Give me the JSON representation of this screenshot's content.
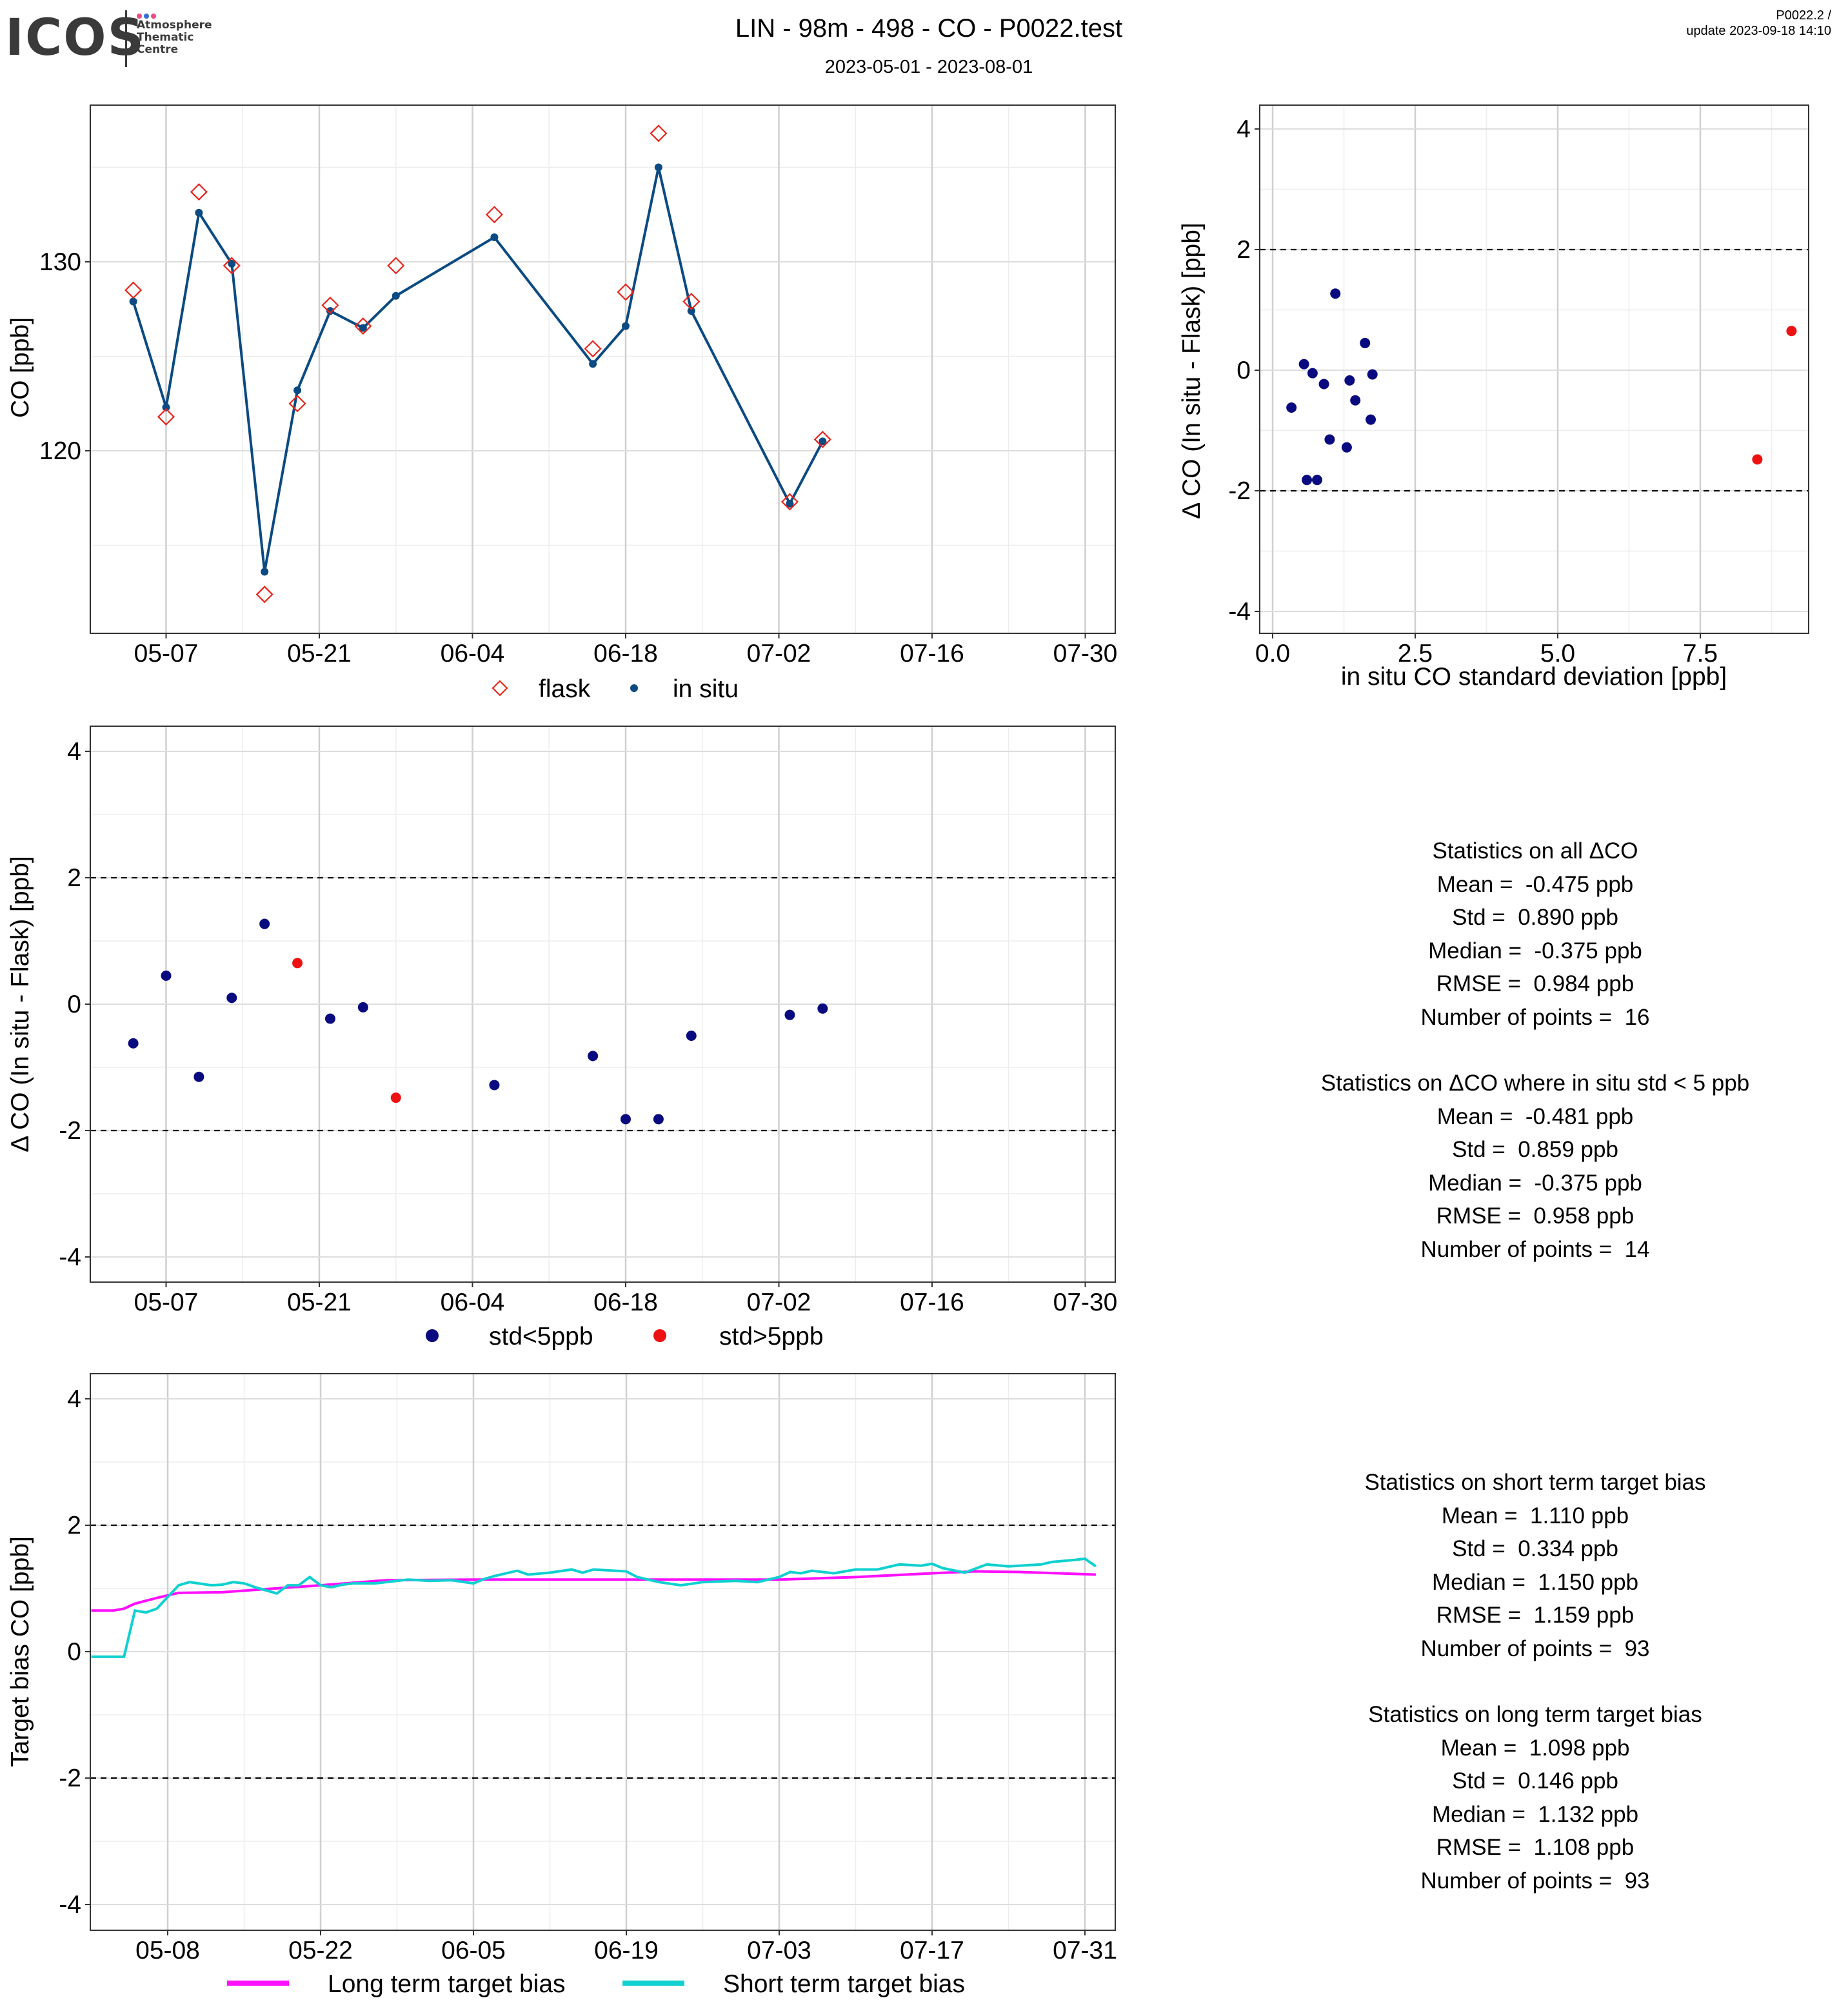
{
  "header": {
    "logo_text": "ICOS",
    "logo_subtitle": [
      "Atmosphere",
      "Thematic",
      "Centre"
    ],
    "title": "LIN - 98m - 498 - CO - P0022.test",
    "date_range": "2023-05-01 - 2023-08-01",
    "version": "P0022.2 /",
    "update": "update  2023-09-18 14:10"
  },
  "colors": {
    "flask": "#e8241b",
    "in_situ": "#0b4a82",
    "std_lt5": "#0a0a80",
    "std_gt5": "#ee1111",
    "long_term": "#ff10ff",
    "short_term": "#10d0d0"
  },
  "chart_data": [
    {
      "type": "line",
      "id": "co_timeseries",
      "ylabel": "CO [ppb]",
      "xlabel": "",
      "x_ticks": [
        "05-07",
        "05-21",
        "06-04",
        "06-18",
        "07-02",
        "07-16",
        "07-30"
      ],
      "y_ticks": [
        "120",
        "130"
      ],
      "legend": [
        "flask",
        "in situ"
      ],
      "legend_position": "bottom",
      "series": [
        {
          "name": "flask",
          "kind": "marker",
          "x": [
            "2023-05-04",
            "2023-05-07",
            "2023-05-10",
            "2023-05-13",
            "2023-05-16",
            "2023-05-19",
            "2023-05-22",
            "2023-05-25",
            "2023-05-28",
            "2023-06-06",
            "2023-06-15",
            "2023-06-18",
            "2023-06-21",
            "2023-06-24",
            "2023-07-03",
            "2023-07-06"
          ],
          "y": [
            128.5,
            121.8,
            133.7,
            129.8,
            112.4,
            122.5,
            127.7,
            126.6,
            129.8,
            132.5,
            125.4,
            128.4,
            136.8,
            127.9,
            117.3,
            120.6
          ]
        },
        {
          "name": "in situ",
          "kind": "line",
          "x": [
            "2023-05-04",
            "2023-05-07",
            "2023-05-10",
            "2023-05-13",
            "2023-05-16",
            "2023-05-19",
            "2023-05-22",
            "2023-05-25",
            "2023-05-28",
            "2023-06-06",
            "2023-06-15",
            "2023-06-18",
            "2023-06-21",
            "2023-06-24",
            "2023-07-03",
            "2023-07-06"
          ],
          "y": [
            127.9,
            122.3,
            132.6,
            129.9,
            113.6,
            123.2,
            127.4,
            126.5,
            128.2,
            131.3,
            124.6,
            126.6,
            135.0,
            127.4,
            117.2,
            120.5
          ]
        }
      ]
    },
    {
      "type": "scatter",
      "id": "delta_vs_std",
      "xlabel": "in situ CO standard deviation [ppb]",
      "ylabel": "Δ CO (In situ - Flask) [ppb]",
      "xlim": [
        -0.2,
        9.5
      ],
      "ylim": [
        -4.4,
        4.4
      ],
      "x_ticks": [
        "0.0",
        "2.5",
        "5.0",
        "7.5"
      ],
      "y_ticks": [
        "-4",
        "-2",
        "0",
        "2",
        "4"
      ],
      "reference_lines": [
        2,
        -2
      ],
      "series": [
        {
          "name": "std<5ppb",
          "x": [
            0.33,
            0.55,
            0.6,
            0.7,
            0.78,
            0.9,
            1.0,
            1.1,
            1.3,
            1.35,
            1.45,
            1.62,
            1.72,
            1.75
          ],
          "y": [
            -0.62,
            0.1,
            -1.82,
            -0.05,
            -1.82,
            -0.23,
            -1.15,
            1.27,
            -1.28,
            -0.17,
            -0.5,
            0.45,
            -0.82,
            -0.07
          ]
        },
        {
          "name": "std>5ppb",
          "x": [
            8.5,
            9.1
          ],
          "y": [
            -1.48,
            0.65
          ]
        }
      ]
    },
    {
      "type": "scatter",
      "id": "delta_timeseries",
      "ylabel": "Δ CO (In situ - Flask) [ppb]",
      "xlabel": "",
      "x_ticks": [
        "05-07",
        "05-21",
        "06-04",
        "06-18",
        "07-02",
        "07-16",
        "07-30"
      ],
      "y_ticks": [
        "-4",
        "-2",
        "0",
        "2",
        "4"
      ],
      "ylim": [
        -4.4,
        4.4
      ],
      "reference_lines": [
        2,
        -2
      ],
      "legend": [
        "std<5ppb",
        "std>5ppb"
      ],
      "legend_position": "bottom",
      "series": [
        {
          "name": "std<5ppb",
          "x": [
            "2023-05-04",
            "2023-05-07",
            "2023-05-10",
            "2023-05-13",
            "2023-05-16",
            "2023-05-22",
            "2023-05-25",
            "2023-06-06",
            "2023-06-15",
            "2023-06-18",
            "2023-06-21",
            "2023-06-24",
            "2023-07-03",
            "2023-07-06"
          ],
          "y": [
            -0.62,
            0.45,
            -1.15,
            0.1,
            1.27,
            -0.23,
            -0.05,
            -1.28,
            -0.82,
            -1.82,
            -1.82,
            -0.5,
            -0.17,
            -0.07
          ]
        },
        {
          "name": "std>5ppb",
          "x": [
            "2023-05-19",
            "2023-05-28"
          ],
          "y": [
            0.65,
            -1.48
          ]
        }
      ]
    },
    {
      "type": "line",
      "id": "target_bias",
      "ylabel": "Target bias CO [ppb]",
      "xlabel": "",
      "x_ticks": [
        "05-08",
        "05-22",
        "06-05",
        "06-19",
        "07-03",
        "07-17",
        "07-31"
      ],
      "y_ticks": [
        "-4",
        "-2",
        "0",
        "2",
        "4"
      ],
      "ylim": [
        -4.4,
        4.4
      ],
      "reference_lines": [
        2,
        -2
      ],
      "legend": [
        "Long term target bias",
        "Short term target bias"
      ],
      "legend_position": "bottom",
      "series": [
        {
          "name": "Long term target bias",
          "x": [
            "2023-05-01",
            "2023-05-03",
            "2023-05-04",
            "2023-05-05",
            "2023-05-07",
            "2023-05-09",
            "2023-05-13",
            "2023-05-17",
            "2023-05-22",
            "2023-05-28",
            "2023-06-05",
            "2023-06-19",
            "2023-07-03",
            "2023-07-10",
            "2023-07-17",
            "2023-07-21",
            "2023-07-25",
            "2023-08-01"
          ],
          "y": [
            0.65,
            0.65,
            0.68,
            0.76,
            0.85,
            0.93,
            0.94,
            0.99,
            1.05,
            1.13,
            1.14,
            1.14,
            1.14,
            1.18,
            1.24,
            1.27,
            1.26,
            1.22
          ]
        },
        {
          "name": "Short term target bias",
          "x": [
            "2023-05-01",
            "2023-05-04",
            "2023-05-05",
            "2023-05-06",
            "2023-05-07",
            "2023-05-09",
            "2023-05-10",
            "2023-05-12",
            "2023-05-13",
            "2023-05-14",
            "2023-05-15",
            "2023-05-16",
            "2023-05-18",
            "2023-05-19",
            "2023-05-20",
            "2023-05-21",
            "2023-05-22",
            "2023-05-23",
            "2023-05-24",
            "2023-05-25",
            "2023-05-27",
            "2023-05-30",
            "2023-06-01",
            "2023-06-03",
            "2023-06-05",
            "2023-06-06",
            "2023-06-07",
            "2023-06-09",
            "2023-06-10",
            "2023-06-12",
            "2023-06-14",
            "2023-06-15",
            "2023-06-16",
            "2023-06-18",
            "2023-06-19",
            "2023-06-20",
            "2023-06-22",
            "2023-06-24",
            "2023-06-26",
            "2023-06-29",
            "2023-07-01",
            "2023-07-03",
            "2023-07-04",
            "2023-07-05",
            "2023-07-06",
            "2023-07-08",
            "2023-07-10",
            "2023-07-12",
            "2023-07-14",
            "2023-07-16",
            "2023-07-17",
            "2023-07-18",
            "2023-07-20",
            "2023-07-22",
            "2023-07-24",
            "2023-07-26",
            "2023-07-27",
            "2023-07-28",
            "2023-07-30",
            "2023-07-31",
            "2023-08-01"
          ],
          "y": [
            -0.08,
            -0.08,
            0.65,
            0.62,
            0.68,
            1.05,
            1.1,
            1.05,
            1.06,
            1.1,
            1.08,
            1.02,
            0.92,
            1.05,
            1.05,
            1.18,
            1.05,
            1.02,
            1.06,
            1.08,
            1.08,
            1.14,
            1.12,
            1.13,
            1.08,
            1.15,
            1.2,
            1.28,
            1.22,
            1.25,
            1.3,
            1.25,
            1.3,
            1.28,
            1.27,
            1.18,
            1.1,
            1.05,
            1.1,
            1.12,
            1.1,
            1.18,
            1.26,
            1.24,
            1.28,
            1.24,
            1.3,
            1.3,
            1.38,
            1.36,
            1.39,
            1.32,
            1.25,
            1.38,
            1.35,
            1.37,
            1.38,
            1.42,
            1.45,
            1.47,
            1.35
          ]
        }
      ]
    }
  ],
  "stats_delta": {
    "all_title": "Statistics on all ΔCO",
    "all": [
      "Mean =  -0.475 ppb",
      "Std =  0.890 ppb",
      "Median =  -0.375 ppb",
      "RMSE =  0.984 ppb",
      "Number of points =  16"
    ],
    "filtered_title": "Statistics on ΔCO where in situ std < 5 ppb",
    "filtered": [
      "Mean =  -0.481 ppb",
      "Std =  0.859 ppb",
      "Median =  -0.375 ppb",
      "RMSE =  0.958 ppb",
      "Number of points =  14"
    ]
  },
  "stats_bias": {
    "short_title": "Statistics on short term target bias",
    "short": [
      "Mean =  1.110 ppb",
      "Std =  0.334 ppb",
      "Median =  1.150 ppb",
      "RMSE =  1.159 ppb",
      "Number of points =  93"
    ],
    "long_title": "Statistics on long term target bias",
    "long": [
      "Mean =  1.098 ppb",
      "Std =  0.146 ppb",
      "Median =  1.132 ppb",
      "RMSE =  1.108 ppb",
      "Number of points =  93"
    ]
  }
}
